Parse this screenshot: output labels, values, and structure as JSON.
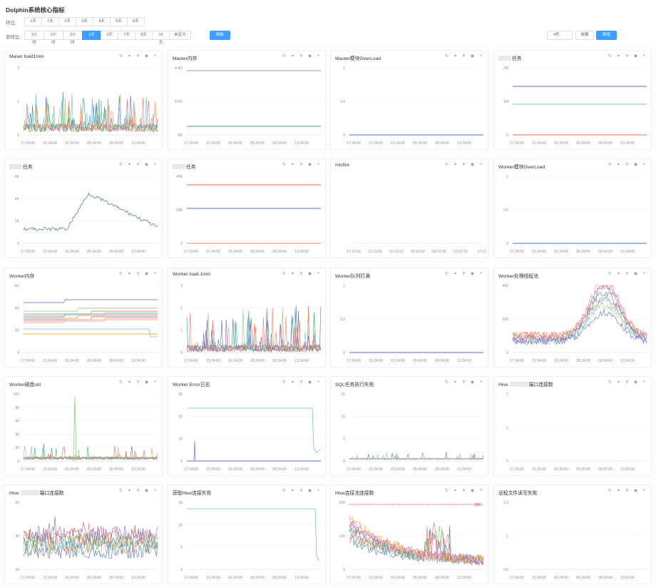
{
  "page": {
    "title": "Dolphin系统核心指标"
  },
  "period_compare": {
    "label": "环比:",
    "options": [
      "1天",
      "7天",
      "2天",
      "3天",
      "4天",
      "5天",
      "6天"
    ]
  },
  "non_period_compare": {
    "label": "非环比:",
    "options": [
      "1小时",
      "2小时",
      "3小时",
      "1天",
      "2天",
      "7天",
      "8天",
      "15天",
      "自定义"
    ],
    "selected": "1天",
    "refresh_label": "刷新"
  },
  "toolbar": {
    "columns_value": "4列",
    "favorite_label": "收藏",
    "add_label": "新增"
  },
  "icons": [
    "refresh-icon",
    "link-icon",
    "move-icon",
    "view-icon",
    "chevron-down-icon"
  ],
  "colors": {
    "accent": "#409eff",
    "text": "#303133",
    "border": "#ebeef5"
  },
  "panels": [
    {
      "title": "Maser load1min",
      "masked": false,
      "yticks": [
        "2",
        "1",
        "0"
      ],
      "xticks": [
        "17:24:00",
        "21:24:00",
        "01:24:00",
        "05:24:00",
        "09:24:00",
        "13:24:00"
      ]
    },
    {
      "title": "Master内存",
      "masked": false,
      "yticks": [
        "8.4G",
        "8.2G",
        "8G"
      ],
      "xticks": [
        "17:24:00",
        "21:24:00",
        "01:24:00",
        "05:24:00",
        "09:24:00",
        "13:24:00"
      ]
    },
    {
      "title": "Master模块OverLoad",
      "masked": false,
      "yticks": [
        "1",
        "0.5",
        "0"
      ],
      "xticks": [
        "17:24:00",
        "21:24:00",
        "01:24:00",
        "05:24:00",
        "09:24:00",
        "13:24:00"
      ]
    },
    {
      "title": "任务",
      "masked": true,
      "yticks": [
        "2M",
        "1M",
        "0"
      ],
      "xticks": [
        "17:24:00",
        "21:24:00",
        "01:24:00",
        "05:24:00",
        "09:24:00",
        "13:24:00"
      ]
    },
    {
      "title": "任务",
      "masked": true,
      "yticks": [
        "6K",
        "4K",
        "2K",
        "0"
      ],
      "xticks": [
        "17:24:00",
        "21:24:00",
        "01:24:00",
        "05:24:00",
        "09:24:00",
        "13:24:00"
      ]
    },
    {
      "title": "任务",
      "masked": true,
      "yticks": [
        "40K",
        "20K",
        "0"
      ],
      "xticks": [
        "17:24:00",
        "21:24:00",
        "01:24:00",
        "05:24:00",
        "09:24:00",
        "13:24:00"
      ]
    },
    {
      "title": "misfire",
      "masked": false,
      "yticks": [],
      "xticks": [
        "17:23:50",
        "21:23:30",
        "01:23:10",
        "05:22:50",
        "09:22:30",
        "13:22:10",
        "17:21"
      ]
    },
    {
      "title": "Worker模块OverLoad",
      "masked": false,
      "yticks": [
        "1",
        "0.5",
        "0"
      ],
      "xticks": [
        "17:24:00",
        "21:24:00",
        "01:24:00",
        "05:24:00",
        "09:24:00",
        "13:24:00"
      ]
    },
    {
      "title": "Worker内存",
      "masked": false,
      "yticks": [
        "6G",
        "4G",
        "2G",
        "0"
      ],
      "xticks": [
        "17:24:00",
        "21:24:00",
        "01:24:00",
        "05:24:00",
        "09:24:00",
        "13:24:00"
      ]
    },
    {
      "title": "Worker load.1min",
      "masked": false,
      "yticks": [
        "3",
        "2",
        "1",
        "0"
      ],
      "xticks": [
        "17:24:00",
        "21:24:00",
        "01:24:00",
        "05:24:00",
        "09:24:00",
        "13:24:00"
      ]
    },
    {
      "title": "Worker队列打满",
      "masked": false,
      "yticks": [
        "1",
        "0.5",
        "0"
      ],
      "xticks": [
        "17:24:00",
        "21:24:00",
        "01:24:00",
        "05:24:00",
        "09:24:00",
        "13:24:00"
      ]
    },
    {
      "title": "Worker处理线程池",
      "masked": false,
      "yticks": [
        "400",
        "200",
        "0"
      ],
      "xticks": [
        "17:24:00",
        "21:24:00",
        "01:24:00",
        "05:24:00",
        "09:24:00",
        "13:24:00"
      ]
    },
    {
      "title": "Worker磁盘util",
      "masked": false,
      "yticks": [
        "100",
        "80",
        "60",
        "40",
        "20",
        "0"
      ],
      "xticks": [
        "17:24:00",
        "21:24:00",
        "01:24:00",
        "05:24:00",
        "09:24:00",
        "13:24:00"
      ]
    },
    {
      "title": "Worker Error日志",
      "masked": false,
      "yticks": [
        "30",
        "20",
        "10",
        "0"
      ],
      "xticks": [
        "17:24:00",
        "21:24:00",
        "01:24:00",
        "05:24:00",
        "09:24:00",
        "13:24:00"
      ]
    },
    {
      "title": "SQL任务执行失败",
      "masked": false,
      "yticks": [
        "15",
        "10",
        "5",
        "0"
      ],
      "xticks": [
        "17:24:00",
        "21:24:00",
        "01:24:00",
        "05:24:00",
        "09:24:00",
        "13:24:00"
      ]
    },
    {
      "title": "端口连接数",
      "prefix": "Hive",
      "masked": true,
      "yticks": [
        "2",
        "1",
        "0"
      ],
      "xticks": [
        "17:26:00",
        "21:26:00",
        "01:26:00",
        "05:26:00",
        "09:26:00",
        "13:26:00"
      ]
    },
    {
      "title": "端口连接数",
      "prefix": "Hive",
      "masked": true,
      "yticks": [
        "60",
        "40",
        "20"
      ],
      "xticks": [
        "17:24:00",
        "21:24:00",
        "01:24:00",
        "05:24:00",
        "09:24:00",
        "13:24:00"
      ]
    },
    {
      "title": "获取Hive连接失败",
      "masked": false,
      "yticks": [
        "15",
        "10",
        "5",
        "0"
      ],
      "xticks": [
        "17:24:00",
        "21:24:00",
        "01:24:00",
        "05:24:00",
        "09:24:00",
        "13:24:00"
      ]
    },
    {
      "title": "Hive连接池连接数",
      "masked": false,
      "yticks": [
        "200",
        "100",
        "0"
      ],
      "markline": "200",
      "xticks": [
        "17:24:00",
        "21:24:00",
        "01:24:00",
        "05:24:00",
        "09:24:00",
        "13:24:00"
      ]
    },
    {
      "title": "远程文件读写失败",
      "masked": false,
      "yticks": [
        "1.5",
        "1",
        "0.5"
      ],
      "xticks": [
        "17:24:00",
        "21:24:00",
        "01:24:00",
        "05:24:00",
        "09:24:00",
        "13:24:00"
      ]
    }
  ]
}
